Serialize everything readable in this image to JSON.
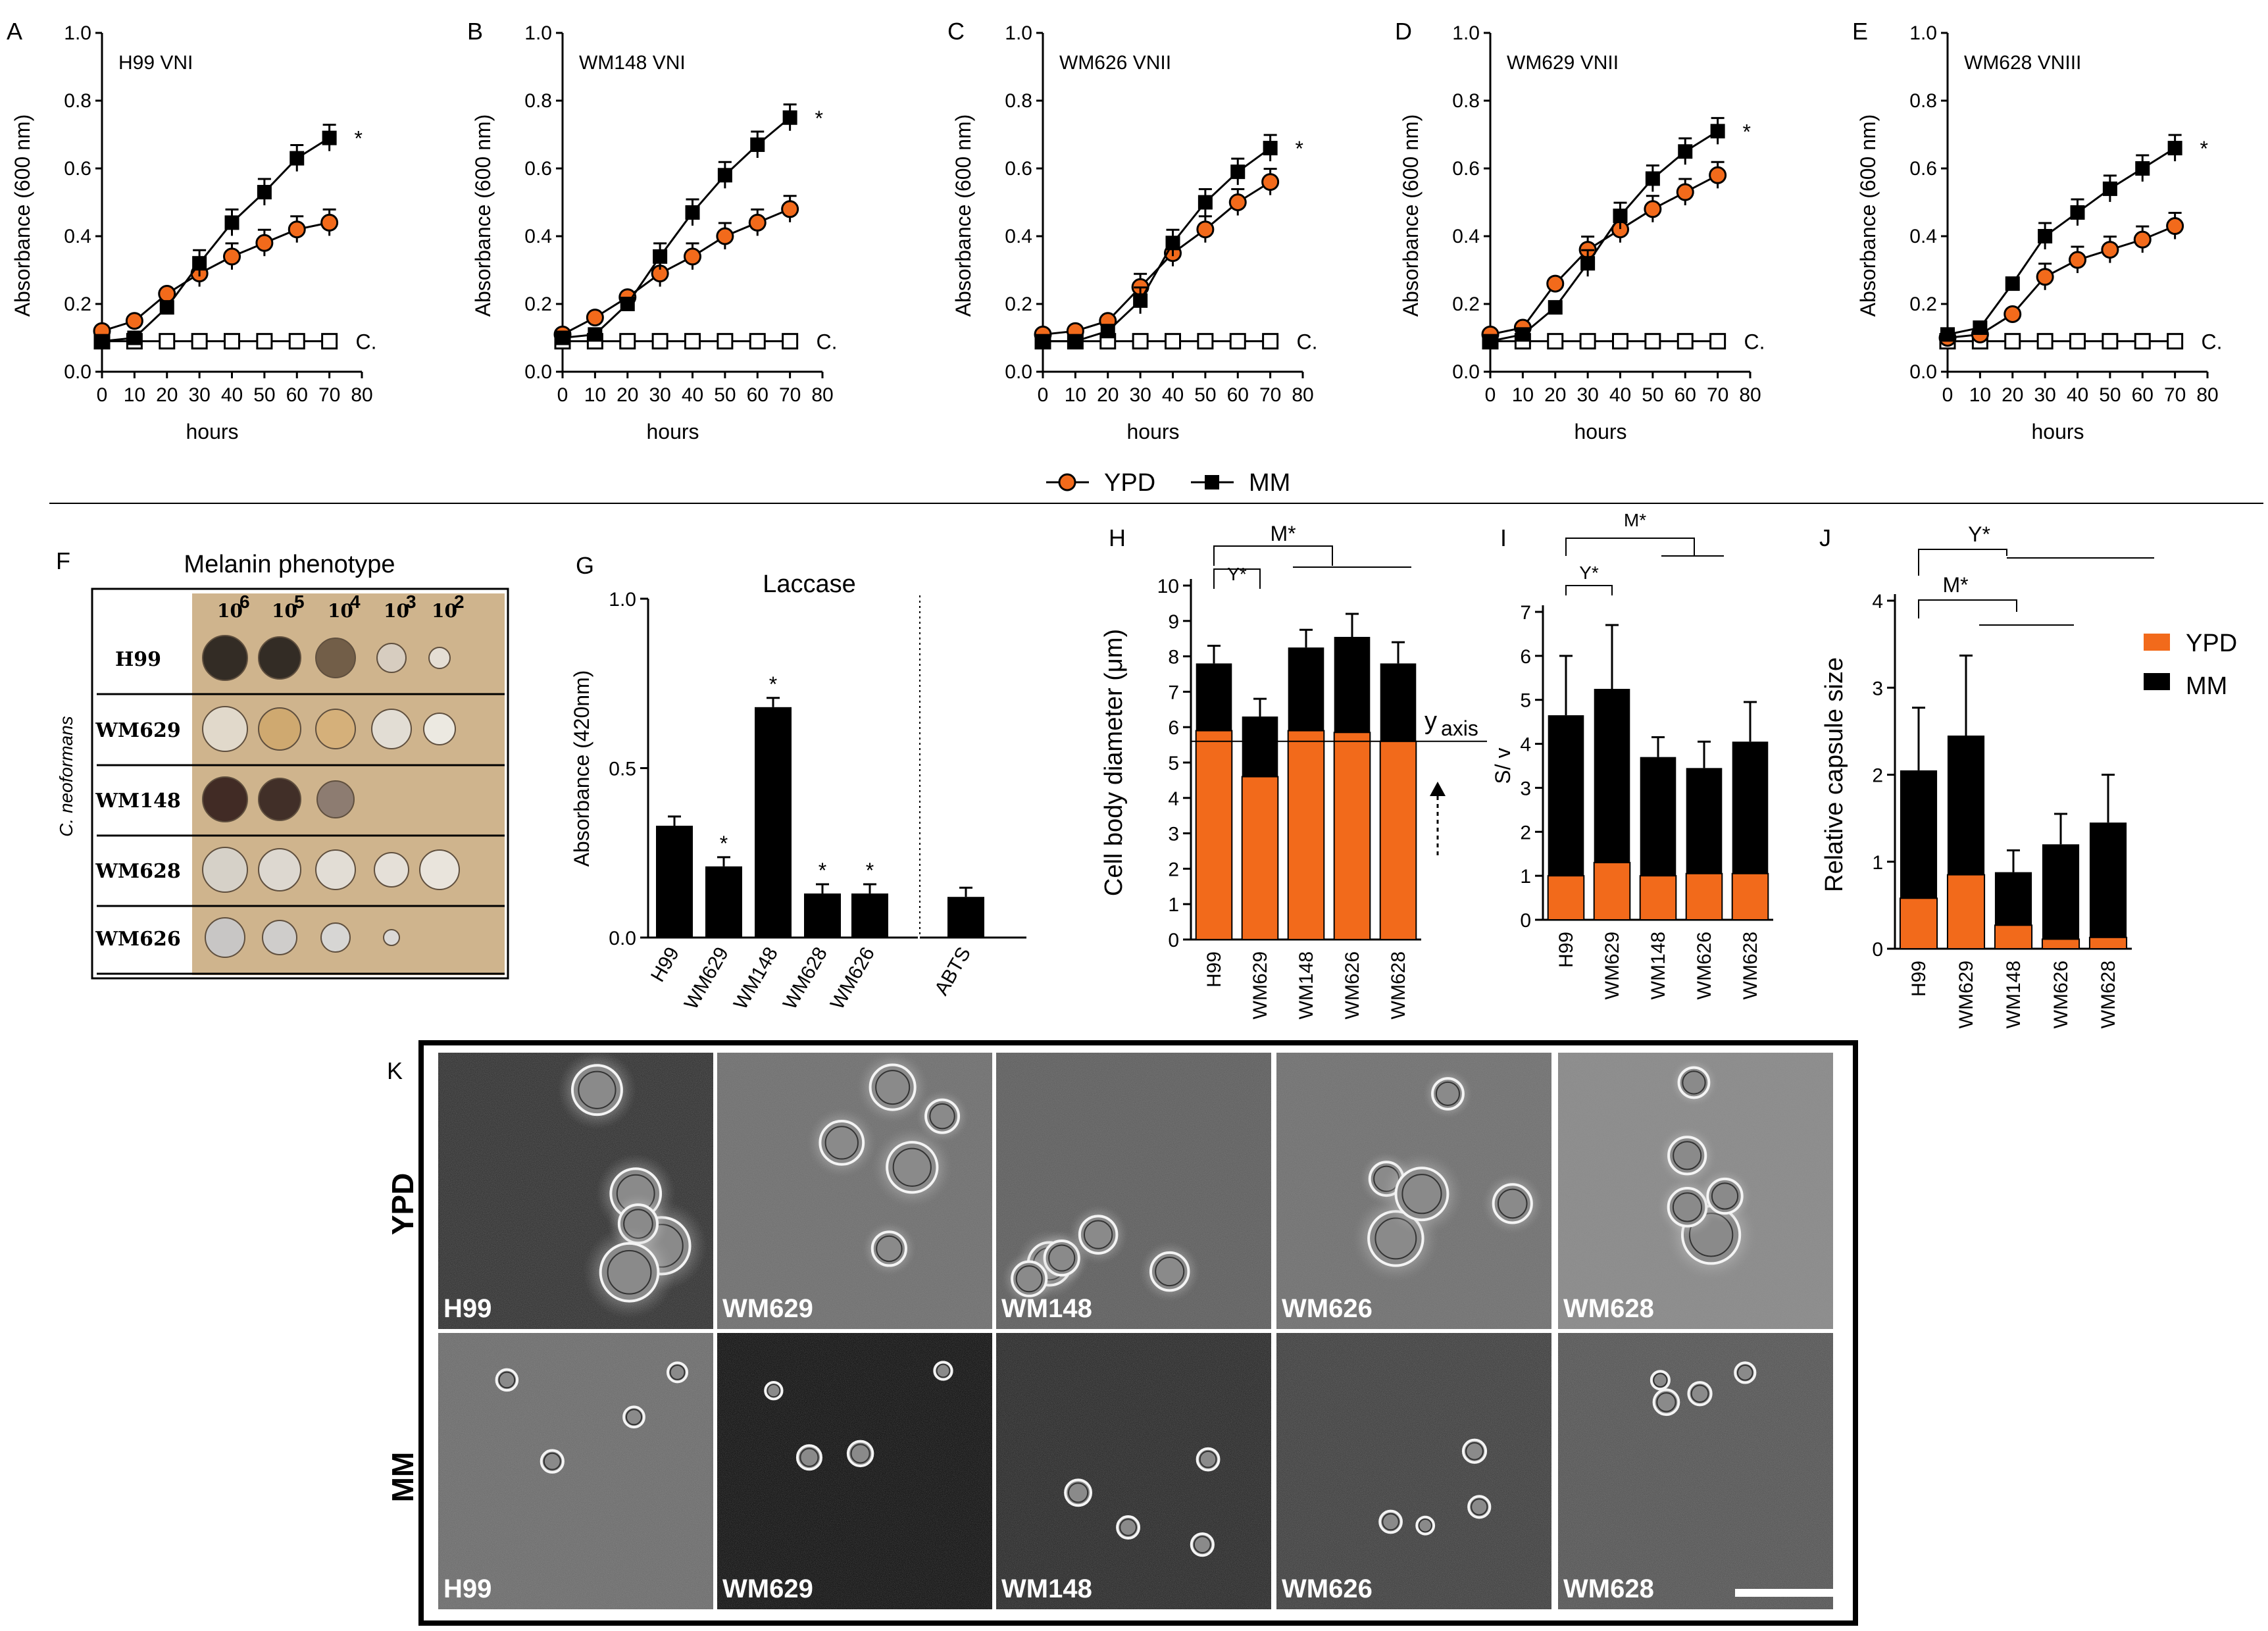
{
  "legend": {
    "ypd": "YPD",
    "mm": "MM"
  },
  "colors": {
    "ypd": "#f26a1b",
    "mm": "#000000",
    "control": "#ffffff"
  },
  "growth": {
    "x_ticks": [
      0,
      10,
      20,
      30,
      40,
      50,
      60,
      70,
      80
    ],
    "y_ticks": [
      "0.0",
      "0.2",
      "0.4",
      "0.6",
      "0.8",
      "1.0"
    ],
    "xlabel": "hours",
    "ylabel": "Absorbance (600 nm)",
    "control_label": "C.",
    "asterisk": "*",
    "x": [
      0,
      10,
      20,
      30,
      40,
      50,
      60,
      70
    ],
    "control": [
      0.09,
      0.09,
      0.09,
      0.09,
      0.09,
      0.09,
      0.09,
      0.09
    ],
    "panels": [
      {
        "letter": "A",
        "title": "H99 VNI",
        "ypd": [
          0.12,
          0.15,
          0.23,
          0.29,
          0.34,
          0.38,
          0.42,
          0.44
        ],
        "mm": [
          0.09,
          0.1,
          0.19,
          0.32,
          0.44,
          0.53,
          0.63,
          0.69
        ]
      },
      {
        "letter": "B",
        "title": "WM148 VNI",
        "ypd": [
          0.11,
          0.16,
          0.22,
          0.29,
          0.34,
          0.4,
          0.44,
          0.48
        ],
        "mm": [
          0.1,
          0.11,
          0.2,
          0.34,
          0.47,
          0.58,
          0.67,
          0.75
        ]
      },
      {
        "letter": "C",
        "title": "WM626 VNII",
        "ypd": [
          0.11,
          0.12,
          0.15,
          0.25,
          0.35,
          0.42,
          0.5,
          0.56
        ],
        "mm": [
          0.09,
          0.09,
          0.12,
          0.21,
          0.38,
          0.5,
          0.59,
          0.66
        ]
      },
      {
        "letter": "D",
        "title": "WM629 VNII",
        "ypd": [
          0.11,
          0.13,
          0.26,
          0.36,
          0.42,
          0.48,
          0.53,
          0.58
        ],
        "mm": [
          0.09,
          0.11,
          0.19,
          0.32,
          0.46,
          0.57,
          0.65,
          0.71
        ]
      },
      {
        "letter": "E",
        "title": "WM628 VNIII",
        "ypd": [
          0.1,
          0.11,
          0.17,
          0.28,
          0.33,
          0.36,
          0.39,
          0.43
        ],
        "mm": [
          0.11,
          0.13,
          0.26,
          0.4,
          0.47,
          0.54,
          0.6,
          0.66
        ]
      }
    ]
  },
  "melanin": {
    "letter": "F",
    "title": "Melanin phenotype",
    "dilutions": [
      "10",
      "10",
      "10",
      "10",
      "10"
    ],
    "exponents": [
      "6",
      "5",
      "4",
      "3",
      "2"
    ],
    "strains": [
      "H99",
      "WM629",
      "WM148",
      "WM628",
      "WM626"
    ],
    "species_label": "C. neoformans"
  },
  "laccase": {
    "letter": "G",
    "title": "Laccase",
    "ylabel": "Absorbance (420nm)",
    "y_ticks": [
      "0.0",
      "0.5",
      "1.0"
    ],
    "categories": [
      "H99",
      "WM629",
      "WM148",
      "WM628",
      "WM626",
      "ABTS"
    ],
    "values": [
      0.33,
      0.21,
      0.68,
      0.13,
      0.13,
      0.12
    ],
    "significant": [
      "",
      "*",
      "*",
      "*",
      "*",
      ""
    ]
  },
  "cell_body": {
    "letter": "H",
    "ylabel": "Cell body diameter (μm)",
    "y_ticks": [
      "0",
      "1",
      "2",
      "3",
      "4",
      "5",
      "6",
      "7",
      "8",
      "9",
      "10"
    ],
    "categories": [
      "H99",
      "WM629",
      "WM148",
      "WM626",
      "WM628"
    ],
    "ypd": [
      5.9,
      4.6,
      5.9,
      5.85,
      5.6
    ],
    "mm": [
      7.8,
      6.3,
      8.25,
      8.55,
      7.8
    ],
    "y_axis_note": "y",
    "y_axis_sub": "axis",
    "sig_m": "M*",
    "sig_y": "Y*"
  },
  "sv": {
    "letter": "I",
    "ylabel": "S/ v",
    "y_ticks": [
      "0",
      "1",
      "2",
      "3",
      "4",
      "5",
      "6",
      "7"
    ],
    "categories": [
      "H99",
      "WM629",
      "WM148",
      "WM626",
      "WM628"
    ],
    "ypd": [
      1.0,
      1.3,
      1.0,
      1.05,
      1.05
    ],
    "mm": [
      4.65,
      5.25,
      3.7,
      3.45,
      4.05
    ],
    "sig_m": "M*",
    "sig_y": "Y*"
  },
  "capsule": {
    "letter": "J",
    "ylabel": "Relative capsule size",
    "y_ticks": [
      "0",
      "1",
      "2",
      "3",
      "4"
    ],
    "categories": [
      "H99",
      "WM629",
      "WM148",
      "WM626",
      "WM628"
    ],
    "ypd": [
      0.58,
      0.85,
      0.27,
      0.11,
      0.13
    ],
    "mm": [
      2.05,
      2.45,
      0.88,
      1.2,
      1.45
    ],
    "sig_y": "Y*",
    "sig_m": "M*"
  },
  "micrographs": {
    "letter": "K",
    "rows": [
      "YPD",
      "MM"
    ],
    "columns": [
      "H99",
      "WM629",
      "WM148",
      "WM626",
      "WM628"
    ]
  }
}
